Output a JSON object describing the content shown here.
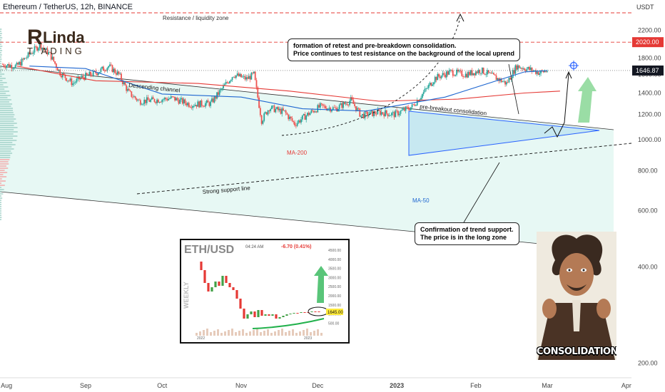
{
  "header": {
    "symbol_title": "Ethereum / TetherUS, 12h, BINANCE",
    "currency": "USDT"
  },
  "logo": {
    "line1": "Linda",
    "line2": "T ADING"
  },
  "annotations": {
    "resistance_zone": "Resistance / liquidity zone",
    "descending_channel": "Descending channel",
    "pre_breakout": "pre-breakout consolidation",
    "support_line": "Strong support line",
    "ma200": "MA-200",
    "ma50": "MA-50",
    "retest_line1": "formation of retest and pre-breakdown consolidation.",
    "retest_line2": "Price continues to test resistance on the background of the local uprend",
    "confirm_line1": "Confirmation of trend support.",
    "confirm_line2": "The price is in the long zone"
  },
  "price_labels": {
    "resistance": "2020.00",
    "current": "1646.87"
  },
  "colors": {
    "up": "#26a69a",
    "down": "#ef5350",
    "ma200": "#e53935",
    "ma50": "#1e66d0",
    "resistance": "#e53935",
    "channel_fill": "#a8e6d6",
    "triangle_fill": "#9fd4ee",
    "triangle_edge": "#2962ff",
    "future_arrow": "#6fcf7f"
  },
  "meme": {
    "caption": "CONSOLIDATION"
  },
  "inset": {
    "title": "ETH/USD",
    "time": "04:24 AM",
    "change": "-6.70 (0.41%)",
    "side_label": "WEEKLY",
    "price_tag": "1645.00",
    "y_ticks": [
      "4500.00",
      "4000.00",
      "3500.00",
      "3000.00",
      "2500.00",
      "2000.00",
      "1500.00",
      "1000.00",
      "500.00"
    ],
    "x_ticks": [
      "2022",
      "2023"
    ]
  },
  "chart_data": {
    "type": "candlestick",
    "title": "Ethereum / TetherUS, 12h, BINANCE",
    "ylabel": "USDT",
    "y_scale": "log",
    "ylim": [
      180,
      2600
    ],
    "y_ticks": [
      200,
      400,
      600,
      800,
      1000,
      1200,
      1400,
      1600,
      1800,
      2000,
      2200
    ],
    "x_ticks": [
      "Aug",
      "Sep",
      "Oct",
      "Nov",
      "Dec",
      "2023",
      "Feb",
      "Mar",
      "Apr"
    ],
    "x_range": [
      "2022-07-30",
      "2023-04-03"
    ],
    "closes": [
      [
        "2022-07-30",
        1720
      ],
      [
        "2022-08-05",
        1700
      ],
      [
        "2022-08-10",
        1850
      ],
      [
        "2022-08-14",
        1980
      ],
      [
        "2022-08-18",
        1850
      ],
      [
        "2022-08-22",
        1620
      ],
      [
        "2022-08-27",
        1500
      ],
      [
        "2022-08-30",
        1560
      ],
      [
        "2022-09-05",
        1620
      ],
      [
        "2022-09-10",
        1700
      ],
      [
        "2022-09-14",
        1600
      ],
      [
        "2022-09-18",
        1400
      ],
      [
        "2022-09-22",
        1320
      ],
      [
        "2022-09-28",
        1330
      ],
      [
        "2022-10-05",
        1350
      ],
      [
        "2022-10-12",
        1290
      ],
      [
        "2022-10-20",
        1300
      ],
      [
        "2022-10-25",
        1460
      ],
      [
        "2022-10-29",
        1600
      ],
      [
        "2022-11-03",
        1550
      ],
      [
        "2022-11-06",
        1600
      ],
      [
        "2022-11-09",
        1150
      ],
      [
        "2022-11-12",
        1260
      ],
      [
        "2022-11-18",
        1220
      ],
      [
        "2022-11-22",
        1120
      ],
      [
        "2022-11-27",
        1200
      ],
      [
        "2022-12-02",
        1270
      ],
      [
        "2022-12-08",
        1250
      ],
      [
        "2022-12-14",
        1330
      ],
      [
        "2022-12-18",
        1190
      ],
      [
        "2022-12-25",
        1220
      ],
      [
        "2022-12-31",
        1200
      ],
      [
        "2023-01-07",
        1270
      ],
      [
        "2023-01-12",
        1420
      ],
      [
        "2023-01-16",
        1560
      ],
      [
        "2023-01-22",
        1630
      ],
      [
        "2023-01-28",
        1600
      ],
      [
        "2023-02-03",
        1650
      ],
      [
        "2023-02-09",
        1560
      ],
      [
        "2023-02-13",
        1500
      ],
      [
        "2023-02-17",
        1700
      ],
      [
        "2023-02-22",
        1660
      ],
      [
        "2023-02-26",
        1620
      ],
      [
        "2023-03-01",
        1646.87
      ]
    ],
    "overlays": {
      "resistance_level": 2020,
      "MA-200_anchors": [
        [
          "2022-08-05",
          1700
        ],
        [
          "2022-09-05",
          1530
        ],
        [
          "2022-10-15",
          1500
        ],
        [
          "2022-11-20",
          1420
        ],
        [
          "2022-12-25",
          1320
        ],
        [
          "2023-01-25",
          1340
        ],
        [
          "2023-02-20",
          1400
        ],
        [
          "2023-03-06",
          1420
        ]
      ],
      "MA-50_anchors": [
        [
          "2022-08-10",
          1700
        ],
        [
          "2022-09-01",
          1670
        ],
        [
          "2022-10-01",
          1390
        ],
        [
          "2022-11-01",
          1360
        ],
        [
          "2022-11-25",
          1250
        ],
        [
          "2022-12-20",
          1230
        ],
        [
          "2023-01-20",
          1360
        ],
        [
          "2023-02-20",
          1630
        ],
        [
          "2023-03-01",
          1645
        ]
      ]
    }
  }
}
